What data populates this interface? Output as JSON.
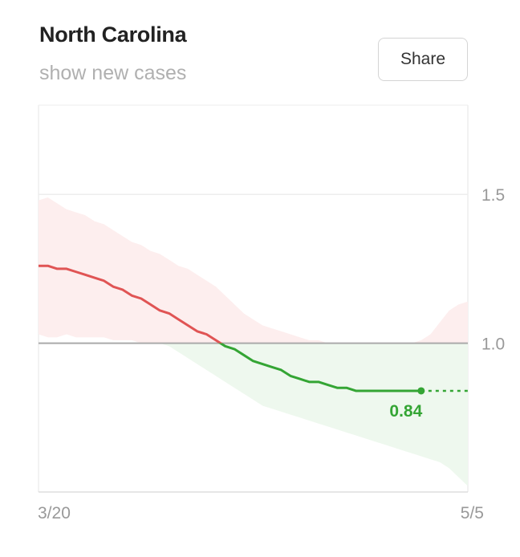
{
  "header": {
    "title": "North Carolina",
    "subtitle": "show new cases",
    "share_label": "Share"
  },
  "chart_data": {
    "type": "line",
    "x_labels": [
      "3/20",
      "5/5"
    ],
    "y_ticks": [
      1.0,
      1.5
    ],
    "ylim": [
      0.5,
      1.8
    ],
    "reference_line": 1.0,
    "latest_label": "0.84",
    "x_start": "3/20",
    "x_end": "5/5",
    "series": [
      {
        "values": [
          1.26,
          1.26,
          1.25,
          1.25,
          1.24,
          1.23,
          1.22,
          1.21,
          1.19,
          1.18,
          1.16,
          1.15,
          1.13,
          1.11,
          1.1,
          1.08,
          1.06,
          1.04,
          1.03,
          1.01,
          0.99,
          0.98,
          0.96,
          0.94,
          0.93,
          0.92,
          0.91,
          0.89,
          0.88,
          0.87,
          0.87,
          0.86,
          0.85,
          0.85,
          0.84,
          0.84,
          0.84,
          0.84,
          0.84,
          0.84,
          0.84,
          0.84,
          0.84,
          0.84,
          0.84,
          0.84,
          0.84
        ],
        "upper": [
          1.48,
          1.49,
          1.47,
          1.45,
          1.44,
          1.43,
          1.41,
          1.4,
          1.38,
          1.36,
          1.34,
          1.33,
          1.31,
          1.3,
          1.28,
          1.26,
          1.25,
          1.23,
          1.21,
          1.19,
          1.16,
          1.13,
          1.1,
          1.08,
          1.06,
          1.05,
          1.04,
          1.03,
          1.02,
          1.01,
          1.01,
          1.0,
          1.0,
          1.0,
          1.0,
          1.0,
          1.0,
          1.0,
          1.0,
          1.0,
          1.0,
          1.01,
          1.03,
          1.07,
          1.11,
          1.13,
          1.14
        ],
        "lower": [
          1.03,
          1.02,
          1.02,
          1.03,
          1.02,
          1.02,
          1.02,
          1.02,
          1.01,
          1.01,
          1.01,
          1.0,
          1.0,
          1.0,
          0.99,
          0.97,
          0.95,
          0.93,
          0.91,
          0.89,
          0.87,
          0.85,
          0.83,
          0.81,
          0.79,
          0.78,
          0.77,
          0.76,
          0.75,
          0.74,
          0.73,
          0.72,
          0.71,
          0.7,
          0.69,
          0.68,
          0.67,
          0.66,
          0.65,
          0.64,
          0.63,
          0.62,
          0.61,
          0.6,
          0.58,
          0.55,
          0.52
        ],
        "estimate_days": 5
      }
    ],
    "colors": {
      "above": "#e05454",
      "below": "#34a534",
      "band_above": "#fdeeee",
      "band_below": "#eef8ee",
      "reference": "#aaaaaa",
      "grid": "#eeeeee",
      "tick_text": "#999999"
    }
  }
}
